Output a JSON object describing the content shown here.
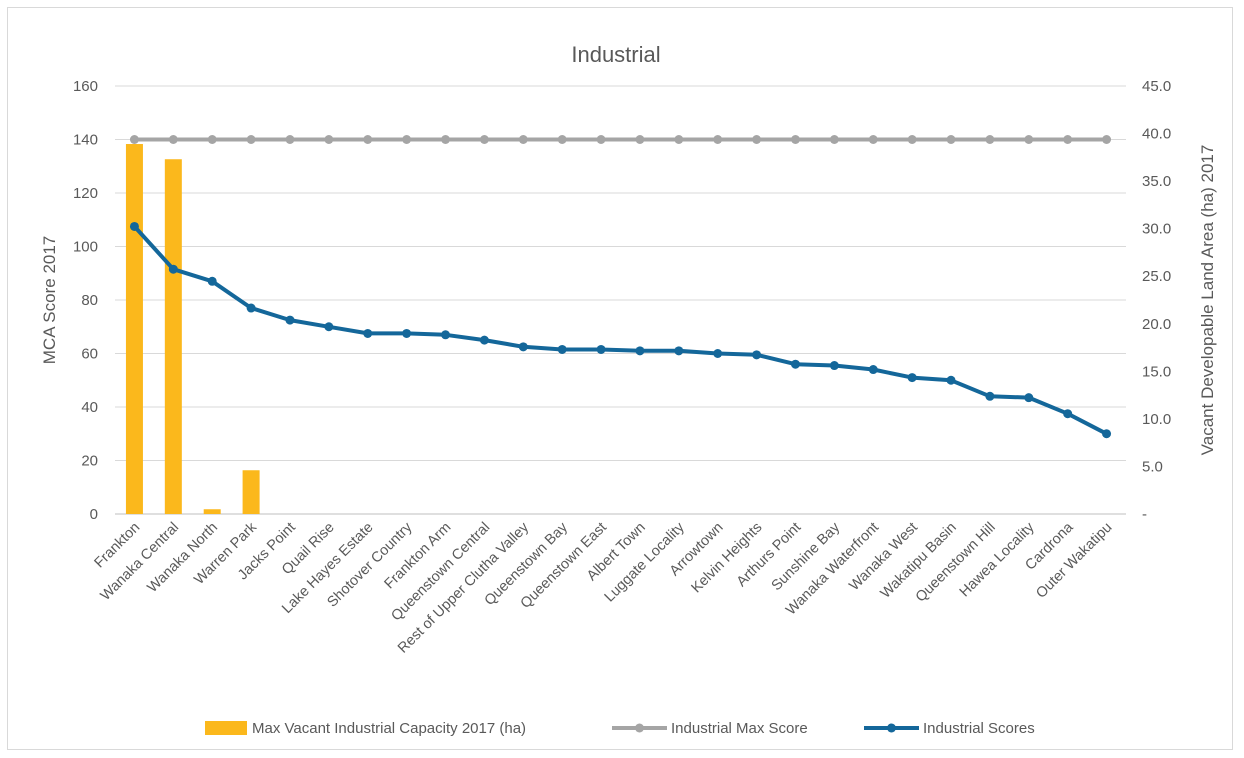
{
  "chart_data": {
    "type": "bar",
    "title": "Industrial",
    "ylabel": "MCA Score 2017",
    "y2label": "Vacant Developable Land Area (ha) 2017",
    "ylim": [
      0,
      160
    ],
    "y2lim": [
      0,
      45
    ],
    "yticks": [
      "0",
      "20",
      "40",
      "60",
      "80",
      "100",
      "120",
      "140",
      "160"
    ],
    "y2ticks": [
      "-",
      "5.0",
      "10.0",
      "15.0",
      "20.0",
      "25.0",
      "30.0",
      "35.0",
      "40.0",
      "45.0"
    ],
    "grid": true,
    "legend_position": "bottom",
    "categories": [
      "Frankton",
      "Wanaka Central",
      "Wanaka North",
      "Warren Park",
      "Jacks Point",
      "Quail Rise",
      "Lake Hayes Estate",
      "Shotover Country",
      "Frankton Arm",
      "Queenstown Central",
      "Rest of Upper Clutha Valley",
      "Queenstown Bay",
      "Queenstown East",
      "Albert Town",
      "Luggate Locality",
      "Arrowtown",
      "Kelvin Heights",
      "Arthurs Point",
      "Sunshine Bay",
      "Wanaka Waterfront",
      "Wanaka West",
      "Wakatipu Basin",
      "Queenstown Hill",
      "Hawea Locality",
      "Cardrona",
      "Outer Wakatipu"
    ],
    "series": [
      {
        "name": "Max Vacant Industrial Capacity 2017 (ha)",
        "kind": "bar",
        "axis": "right",
        "color": "#fbb81c",
        "values": [
          38.9,
          37.3,
          0.5,
          4.6,
          0,
          0,
          0,
          0,
          0,
          0,
          0,
          0,
          0,
          0,
          0,
          0,
          0,
          0,
          0,
          0,
          0,
          0,
          0,
          0,
          0,
          0
        ]
      },
      {
        "name": "Industrial Max Score",
        "kind": "line",
        "axis": "left",
        "color": "#a5a5a5",
        "values": [
          140,
          140,
          140,
          140,
          140,
          140,
          140,
          140,
          140,
          140,
          140,
          140,
          140,
          140,
          140,
          140,
          140,
          140,
          140,
          140,
          140,
          140,
          140,
          140,
          140,
          140
        ]
      },
      {
        "name": "Industrial Scores",
        "kind": "line",
        "axis": "left",
        "color": "#14679a",
        "values": [
          107.5,
          91.5,
          87,
          77,
          72.5,
          70,
          67.5,
          67.5,
          67,
          65,
          62.5,
          61.5,
          61.5,
          61,
          61,
          60,
          59.5,
          56,
          55.5,
          54,
          51,
          50,
          44,
          43.5,
          37.5,
          30
        ]
      }
    ]
  }
}
